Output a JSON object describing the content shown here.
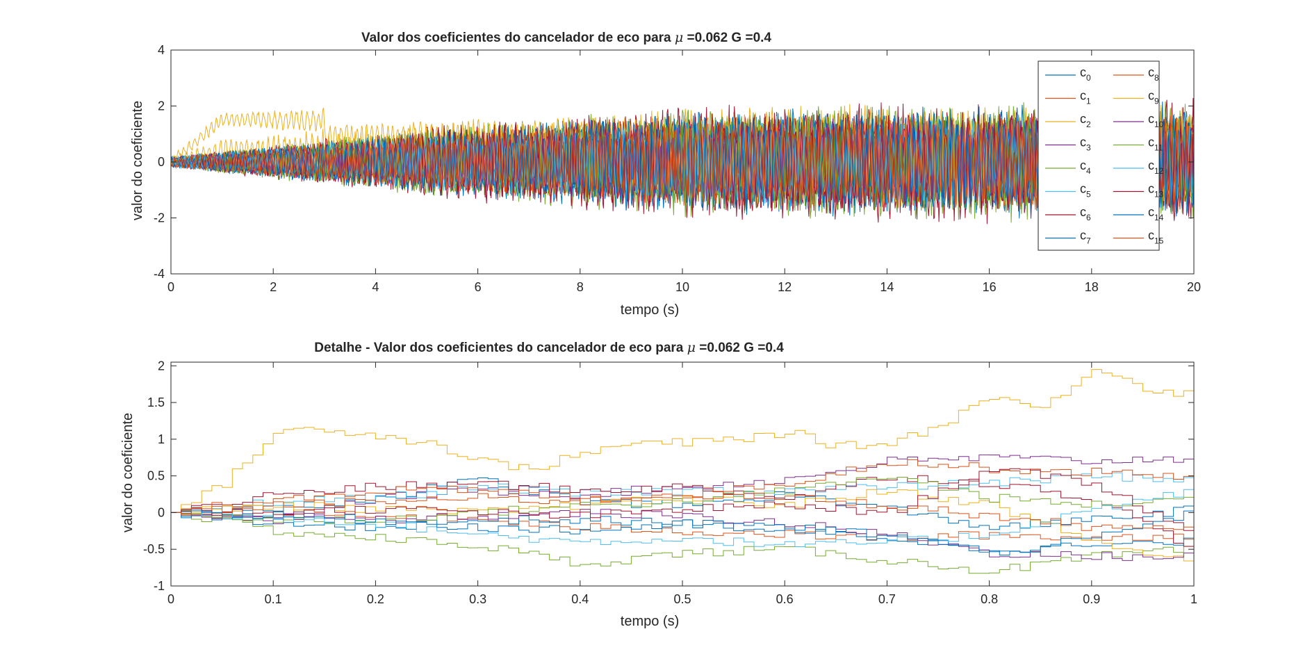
{
  "figure": {
    "background": "#ffffff"
  },
  "chart_data": [
    {
      "type": "line",
      "title": "Valor dos coeficientes do cancelador de eco para μ =0.062 G =0.4",
      "title_parts": {
        "before": "Valor dos coeficientes do cancelador de eco para ",
        "symbol": "μ",
        "after": " =0.062 G =0.4"
      },
      "xlabel": "tempo (s)",
      "ylabel": "valor do coeficiente",
      "xlim": [
        0,
        20
      ],
      "ylim": [
        -4,
        4
      ],
      "xticks": [
        "0",
        "2",
        "4",
        "6",
        "8",
        "10",
        "12",
        "14",
        "16",
        "18",
        "20"
      ],
      "xtick_values": [
        0,
        2,
        4,
        6,
        8,
        10,
        12,
        14,
        16,
        18,
        20
      ],
      "yticks": [
        "-4",
        "-2",
        "0",
        "2",
        "4"
      ],
      "ytick_values": [
        -4,
        -2,
        0,
        2,
        4
      ],
      "grid": false,
      "legend": {
        "placement": "top-right",
        "columns": 2
      },
      "series": [
        {
          "name": "c0",
          "label_base": "c",
          "label_sub": "0",
          "color": "#0072BD",
          "envelope": [
            [
              0,
              0.2
            ],
            [
              5,
              1.2
            ],
            [
              10,
              1.8
            ],
            [
              20,
              2.0
            ]
          ],
          "offset": 0.0
        },
        {
          "name": "c1",
          "label_base": "c",
          "label_sub": "1",
          "color": "#D95319",
          "envelope": [
            [
              0,
              0.2
            ],
            [
              5,
              1.1
            ],
            [
              10,
              1.6
            ],
            [
              20,
              1.8
            ]
          ],
          "offset": 0.0
        },
        {
          "name": "c2",
          "label_base": "c",
          "label_sub": "2",
          "color": "#EDB120",
          "envelope": [
            [
              0,
              0.2
            ],
            [
              5,
              0.6
            ],
            [
              10,
              0.8
            ],
            [
              20,
              0.8
            ]
          ],
          "offset": 1.5
        },
        {
          "name": "c3",
          "label_base": "c",
          "label_sub": "3",
          "color": "#7E2F8E",
          "envelope": [
            [
              0,
              0.2
            ],
            [
              5,
              1.0
            ],
            [
              10,
              1.5
            ],
            [
              20,
              1.7
            ]
          ],
          "offset": 0.0
        },
        {
          "name": "c4",
          "label_base": "c",
          "label_sub": "4",
          "color": "#77AC30",
          "envelope": [
            [
              0,
              0.2
            ],
            [
              5,
              1.3
            ],
            [
              10,
              2.0
            ],
            [
              20,
              2.3
            ]
          ],
          "offset": 0.0
        },
        {
          "name": "c5",
          "label_base": "c",
          "label_sub": "5",
          "color": "#4DBEEE",
          "envelope": [
            [
              0,
              0.2
            ],
            [
              5,
              1.0
            ],
            [
              10,
              1.5
            ],
            [
              20,
              1.7
            ]
          ],
          "offset": 0.0
        },
        {
          "name": "c6",
          "label_base": "c",
          "label_sub": "6",
          "color": "#A2142F",
          "envelope": [
            [
              0,
              0.2
            ],
            [
              5,
              1.3
            ],
            [
              10,
              2.1
            ],
            [
              20,
              2.3
            ]
          ],
          "offset": 0.0
        },
        {
          "name": "c7",
          "label_base": "c",
          "label_sub": "7",
          "color": "#0072BD",
          "envelope": [
            [
              0,
              0.2
            ],
            [
              5,
              1.2
            ],
            [
              10,
              1.9
            ],
            [
              20,
              2.2
            ]
          ],
          "offset": 0.0
        },
        {
          "name": "c8",
          "label_base": "c",
          "label_sub": "8",
          "color": "#D95319",
          "envelope": [
            [
              0,
              0.2
            ],
            [
              5,
              1.0
            ],
            [
              10,
              1.5
            ],
            [
              20,
              1.7
            ]
          ],
          "offset": 0.0
        },
        {
          "name": "c9",
          "label_base": "c",
          "label_sub": "9",
          "color": "#EDB120",
          "envelope": [
            [
              0,
              0.2
            ],
            [
              5,
              1.2
            ],
            [
              10,
              1.8
            ],
            [
              20,
              1.9
            ]
          ],
          "offset": 0.4
        },
        {
          "name": "c10",
          "label_base": "c",
          "label_sub": "10",
          "color": "#7E2F8E",
          "envelope": [
            [
              0,
              0.2
            ],
            [
              5,
              1.0
            ],
            [
              10,
              1.5
            ],
            [
              20,
              1.7
            ]
          ],
          "offset": 0.0
        },
        {
          "name": "c11",
          "label_base": "c",
          "label_sub": "11",
          "color": "#77AC30",
          "envelope": [
            [
              0,
              0.2
            ],
            [
              5,
              1.2
            ],
            [
              10,
              1.8
            ],
            [
              20,
              2.0
            ]
          ],
          "offset": 0.0
        },
        {
          "name": "c12",
          "label_base": "c",
          "label_sub": "12",
          "color": "#4DBEEE",
          "envelope": [
            [
              0,
              0.2
            ],
            [
              5,
              1.0
            ],
            [
              10,
              1.5
            ],
            [
              20,
              1.6
            ]
          ],
          "offset": 0.0
        },
        {
          "name": "c13",
          "label_base": "c",
          "label_sub": "13",
          "color": "#A2142F",
          "envelope": [
            [
              0,
              0.2
            ],
            [
              5,
              1.2
            ],
            [
              10,
              1.8
            ],
            [
              20,
              2.0
            ]
          ],
          "offset": 0.0
        },
        {
          "name": "c14",
          "label_base": "c",
          "label_sub": "14",
          "color": "#0072BD",
          "envelope": [
            [
              0,
              0.2
            ],
            [
              5,
              1.1
            ],
            [
              10,
              1.7
            ],
            [
              20,
              1.9
            ]
          ],
          "offset": 0.0
        },
        {
          "name": "c15",
          "label_base": "c",
          "label_sub": "15",
          "color": "#D95319",
          "envelope": [
            [
              0,
              0.2
            ],
            [
              5,
              1.0
            ],
            [
              10,
              1.6
            ],
            [
              20,
              1.8
            ]
          ],
          "offset": 0.0
        }
      ]
    },
    {
      "type": "line",
      "step": true,
      "title": "Detalhe - Valor dos coeficientes do cancelador de eco para μ =0.062 G =0.4",
      "title_parts": {
        "before": "Detalhe - Valor dos coeficientes do cancelador de eco para ",
        "symbol": "μ",
        "after": " =0.062 G =0.4"
      },
      "xlabel": "tempo (s)",
      "ylabel": "valor do coeficiente",
      "xlim": [
        0,
        1
      ],
      "ylim": [
        -1,
        2.05
      ],
      "xticks": [
        "0",
        "0.1",
        "0.2",
        "0.3",
        "0.4",
        "0.5",
        "0.6",
        "0.7",
        "0.8",
        "0.9",
        "1"
      ],
      "xtick_values": [
        0,
        0.1,
        0.2,
        0.3,
        0.4,
        0.5,
        0.6,
        0.7,
        0.8,
        0.9,
        1
      ],
      "yticks": [
        "-1",
        "-0.5",
        "0",
        "0.5",
        "1",
        "1.5",
        "2"
      ],
      "ytick_values": [
        -1,
        -0.5,
        0,
        0.5,
        1,
        1.5,
        2
      ],
      "grid": false,
      "series": [
        {
          "name": "c0",
          "color": "#0072BD",
          "x": [
            0,
            0.1,
            0.2,
            0.3,
            0.4,
            0.5,
            0.6,
            0.7,
            0.8,
            0.9,
            1
          ],
          "y": [
            0,
            0.05,
            0.2,
            0.45,
            0.15,
            0.1,
            0.25,
            0.05,
            -0.2,
            -0.1,
            0.05
          ]
        },
        {
          "name": "c1",
          "color": "#D95319",
          "x": [
            0,
            0.1,
            0.2,
            0.3,
            0.4,
            0.5,
            0.6,
            0.7,
            0.8,
            0.9,
            1
          ],
          "y": [
            0,
            0.0,
            -0.05,
            -0.1,
            -0.2,
            -0.25,
            -0.3,
            -0.35,
            -0.3,
            -0.35,
            -0.3
          ]
        },
        {
          "name": "c2",
          "color": "#EDB120",
          "x": [
            0,
            0.05,
            0.1,
            0.15,
            0.2,
            0.25,
            0.3,
            0.35,
            0.4,
            0.45,
            0.5,
            0.55,
            0.6,
            0.65,
            0.7,
            0.75,
            0.8,
            0.85,
            0.9,
            0.95,
            1
          ],
          "y": [
            0,
            0.4,
            1.1,
            1.15,
            1.05,
            0.95,
            0.7,
            0.6,
            0.8,
            0.95,
            0.95,
            1.0,
            1.1,
            0.9,
            0.95,
            1.2,
            1.6,
            1.4,
            2.0,
            1.7,
            1.6
          ]
        },
        {
          "name": "c3",
          "color": "#7E2F8E",
          "x": [
            0,
            0.1,
            0.2,
            0.3,
            0.4,
            0.5,
            0.6,
            0.7,
            0.8,
            0.9,
            1
          ],
          "y": [
            0,
            -0.1,
            0.2,
            0.3,
            0.25,
            0.35,
            0.45,
            0.7,
            0.75,
            0.7,
            0.75
          ]
        },
        {
          "name": "c4",
          "color": "#77AC30",
          "x": [
            0,
            0.1,
            0.2,
            0.3,
            0.4,
            0.5,
            0.6,
            0.7,
            0.8,
            0.9,
            1
          ],
          "y": [
            0,
            -0.25,
            -0.35,
            -0.45,
            -0.7,
            -0.55,
            -0.5,
            -0.65,
            -0.8,
            -0.6,
            -0.5
          ]
        },
        {
          "name": "c5",
          "color": "#4DBEEE",
          "x": [
            0,
            0.1,
            0.2,
            0.3,
            0.4,
            0.5,
            0.6,
            0.7,
            0.8,
            0.9,
            1
          ],
          "y": [
            0,
            0.15,
            0.2,
            0.35,
            0.25,
            0.3,
            0.3,
            0.35,
            0.4,
            0.5,
            0.45
          ]
        },
        {
          "name": "c6",
          "color": "#A2142F",
          "x": [
            0,
            0.1,
            0.2,
            0.3,
            0.4,
            0.5,
            0.6,
            0.7,
            0.8,
            0.9,
            1
          ],
          "y": [
            0,
            0.25,
            0.35,
            0.4,
            0.3,
            0.35,
            0.2,
            0.5,
            0.4,
            0.2,
            -0.5
          ]
        },
        {
          "name": "c7",
          "color": "#0072BD",
          "x": [
            0,
            0.1,
            0.2,
            0.3,
            0.4,
            0.5,
            0.6,
            0.7,
            0.8,
            0.9,
            1
          ],
          "y": [
            0,
            -0.15,
            -0.2,
            -0.1,
            -0.1,
            -0.15,
            -0.25,
            -0.35,
            -0.5,
            -0.45,
            -0.4
          ]
        },
        {
          "name": "c8",
          "color": "#D95319",
          "x": [
            0,
            0.1,
            0.2,
            0.3,
            0.4,
            0.5,
            0.6,
            0.7,
            0.8,
            0.9,
            1
          ],
          "y": [
            0,
            0.2,
            0.3,
            0.3,
            0.2,
            0.25,
            0.4,
            0.7,
            0.6,
            0.55,
            0.5
          ]
        },
        {
          "name": "c9",
          "color": "#EDB120",
          "x": [
            0,
            0.1,
            0.2,
            0.3,
            0.4,
            0.5,
            0.6,
            0.7,
            0.8,
            0.9,
            1
          ],
          "y": [
            0,
            0.1,
            0.05,
            0.0,
            0.1,
            0.2,
            0.1,
            0.3,
            0.1,
            -0.4,
            -0.7
          ]
        },
        {
          "name": "c10",
          "color": "#7E2F8E",
          "x": [
            0,
            0.1,
            0.2,
            0.3,
            0.4,
            0.5,
            0.6,
            0.7,
            0.8,
            0.9,
            1
          ],
          "y": [
            0,
            -0.05,
            -0.1,
            -0.05,
            0.0,
            -0.05,
            -0.15,
            -0.3,
            -0.55,
            -0.6,
            -0.6
          ]
        },
        {
          "name": "c11",
          "color": "#77AC30",
          "x": [
            0,
            0.1,
            0.2,
            0.3,
            0.4,
            0.5,
            0.6,
            0.7,
            0.8,
            0.9,
            1
          ],
          "y": [
            0,
            -0.1,
            -0.1,
            0.0,
            0.1,
            0.15,
            0.3,
            0.5,
            0.2,
            0.1,
            0.2
          ]
        },
        {
          "name": "c12",
          "color": "#4DBEEE",
          "x": [
            0,
            0.1,
            0.2,
            0.3,
            0.4,
            0.5,
            0.6,
            0.7,
            0.8,
            0.9,
            1
          ],
          "y": [
            0,
            -0.05,
            -0.15,
            -0.3,
            -0.4,
            -0.35,
            -0.45,
            -0.4,
            -0.3,
            0.05,
            0.3
          ]
        },
        {
          "name": "c13",
          "color": "#A2142F",
          "x": [
            0,
            0.1,
            0.2,
            0.3,
            0.4,
            0.5,
            0.6,
            0.7,
            0.8,
            0.9,
            1
          ],
          "y": [
            0,
            0.0,
            0.05,
            0.0,
            -0.05,
            0.05,
            0.1,
            0.0,
            0.6,
            0.4,
            -0.3
          ]
        },
        {
          "name": "c14",
          "color": "#0072BD",
          "x": [
            0,
            0.1,
            0.2,
            0.3,
            0.4,
            0.5,
            0.6,
            0.7,
            0.8,
            0.9,
            1
          ],
          "y": [
            0,
            -0.05,
            -0.1,
            -0.2,
            -0.25,
            -0.15,
            -0.2,
            -0.3,
            -0.55,
            -0.35,
            0.0
          ]
        },
        {
          "name": "c15",
          "color": "#D95319",
          "x": [
            0,
            0.1,
            0.2,
            0.3,
            0.4,
            0.5,
            0.6,
            0.7,
            0.8,
            0.9,
            1
          ],
          "y": [
            0,
            0.1,
            0.15,
            0.2,
            0.15,
            0.25,
            0.2,
            0.1,
            -0.05,
            -0.2,
            -0.25
          ]
        }
      ]
    }
  ]
}
